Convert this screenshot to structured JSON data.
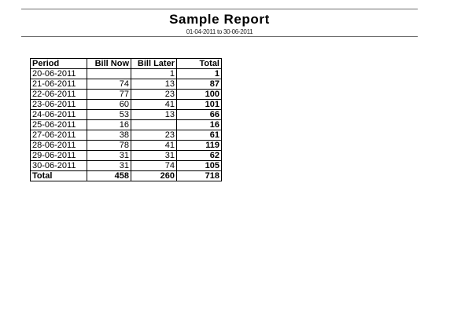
{
  "report": {
    "title": "Sample Report",
    "date_range": "01-04-2011 to 30-06-2011"
  },
  "table": {
    "headers": {
      "period": "Period",
      "bill_now": "Bill Now",
      "bill_later": "Bill Later",
      "total": "Total"
    },
    "rows": [
      {
        "period": "20-06-2011",
        "bill_now": "",
        "bill_later": "1",
        "total": "1"
      },
      {
        "period": "21-06-2011",
        "bill_now": "74",
        "bill_later": "13",
        "total": "87"
      },
      {
        "period": "22-06-2011",
        "bill_now": "77",
        "bill_later": "23",
        "total": "100"
      },
      {
        "period": "23-06-2011",
        "bill_now": "60",
        "bill_later": "41",
        "total": "101"
      },
      {
        "period": "24-06-2011",
        "bill_now": "53",
        "bill_later": "13",
        "total": "66"
      },
      {
        "period": "25-06-2011",
        "bill_now": "16",
        "bill_later": "",
        "total": "16"
      },
      {
        "period": "27-06-2011",
        "bill_now": "38",
        "bill_later": "23",
        "total": "61"
      },
      {
        "period": "28-06-2011",
        "bill_now": "78",
        "bill_later": "41",
        "total": "119"
      },
      {
        "period": "29-06-2011",
        "bill_now": "31",
        "bill_later": "31",
        "total": "62"
      },
      {
        "period": "30-06-2011",
        "bill_now": "31",
        "bill_later": "74",
        "total": "105"
      }
    ],
    "totals": {
      "label": "Total",
      "bill_now": "458",
      "bill_later": "260",
      "total": "718"
    }
  }
}
